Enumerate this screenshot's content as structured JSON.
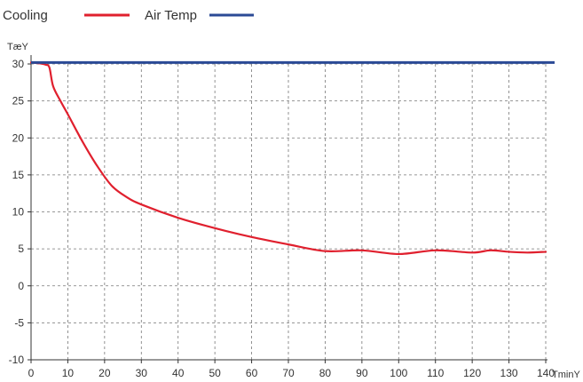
{
  "chart_data": {
    "type": "line",
    "xlabel": "TminY",
    "ylabel": "TæY",
    "xlim": [
      0,
      140
    ],
    "ylim": [
      -10,
      30
    ],
    "xticks": [
      0,
      10,
      20,
      30,
      40,
      50,
      60,
      70,
      80,
      90,
      100,
      110,
      120,
      130,
      140
    ],
    "yticks": [
      30,
      25,
      20,
      15,
      10,
      5,
      0,
      -5,
      -10
    ],
    "grid": true,
    "legend_position": "top-left",
    "series": [
      {
        "name": "Cooling",
        "color": "#e0202e",
        "x": [
          0,
          2,
          4,
          5,
          6,
          8,
          10,
          14,
          18,
          22,
          26,
          30,
          40,
          50,
          60,
          70,
          80,
          90,
          100,
          110,
          120,
          125,
          130,
          135,
          140
        ],
        "y": [
          30.2,
          30.1,
          29.9,
          29.5,
          27,
          25,
          23.2,
          19.5,
          16.2,
          13.5,
          12,
          11,
          9.2,
          7.8,
          6.6,
          5.6,
          4.7,
          4.8,
          4.3,
          4.8,
          4.5,
          4.8,
          4.6,
          4.5,
          4.6
        ]
      },
      {
        "name": "Air Temp",
        "color": "#2b4a96",
        "x": [
          0,
          140
        ],
        "y": [
          30.2,
          30.2
        ]
      }
    ]
  }
}
